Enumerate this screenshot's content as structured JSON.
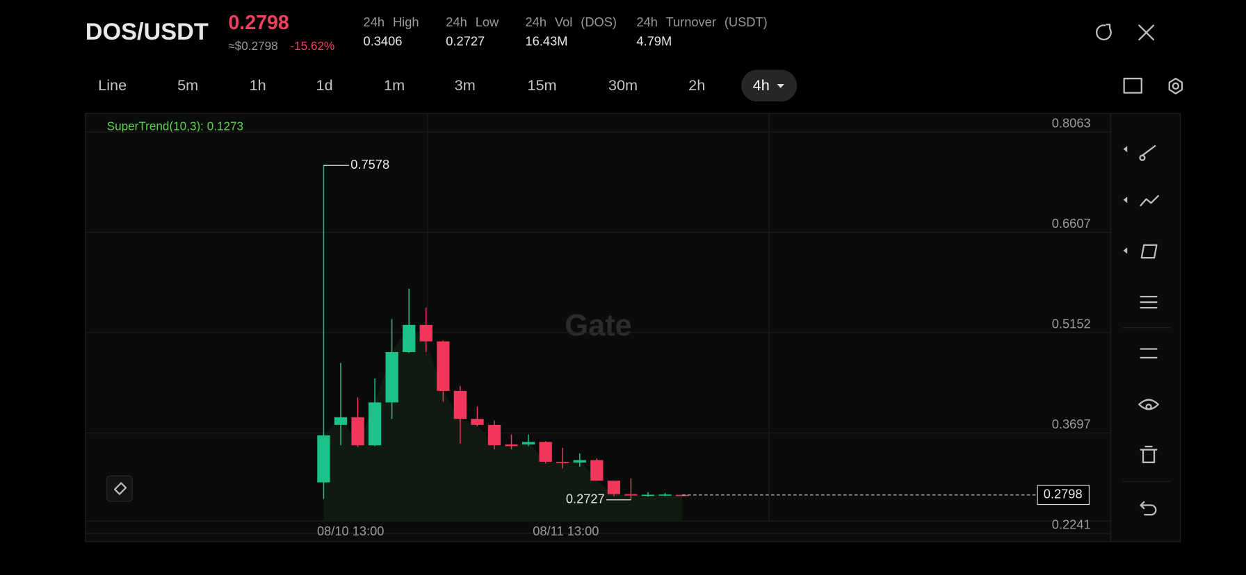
{
  "header": {
    "pair": "DOS/USDT",
    "price": "0.2798",
    "usd_price": "≈$0.2798",
    "change": "-15.62%",
    "stats": [
      {
        "label": "24h High",
        "value": "0.3406"
      },
      {
        "label": "24h Low",
        "value": "0.2727"
      },
      {
        "label": "24h Vol (DOS)",
        "value": "16.43M"
      },
      {
        "label": "24h Turnover (USDT)",
        "value": "4.79M"
      }
    ]
  },
  "timeframes": [
    "Line",
    "5m",
    "1h",
    "1d",
    "1m",
    "3m",
    "15m",
    "30m",
    "2h",
    "4h"
  ],
  "chart_data": {
    "type": "candlestick",
    "indicator": "SuperTrend(10,3): 0.1273",
    "watermark": "Gate",
    "open": [
      0.2981,
      0.3815,
      0.3926,
      0.3519,
      0.4141,
      0.4871,
      0.5265,
      0.5026,
      0.4308,
      0.3902,
      0.3815,
      0.3531,
      0.3531,
      0.3567,
      0.328,
      0.3268,
      0.3304,
      0.3005,
      0.281,
      0.279,
      0.2792,
      0.28
    ],
    "high": [
      0.7578,
      0.4715,
      0.4213,
      0.4488,
      0.5349,
      0.5792,
      0.5516,
      0.5038,
      0.438,
      0.4081,
      0.3878,
      0.3675,
      0.3675,
      0.3579,
      0.3483,
      0.34,
      0.3328,
      0.3005,
      0.304,
      0.284,
      0.283,
      0.2802
    ],
    "low": [
      0.2742,
      0.3519,
      0.3495,
      0.3507,
      0.3902,
      0.4858,
      0.4871,
      0.4153,
      0.3543,
      0.3794,
      0.3459,
      0.3459,
      0.3507,
      0.3256,
      0.3184,
      0.3208,
      0.3005,
      0.278,
      0.2727,
      0.277,
      0.278,
      0.2798
    ],
    "close": [
      0.3663,
      0.3926,
      0.3519,
      0.4141,
      0.4871,
      0.5265,
      0.5026,
      0.4308,
      0.3902,
      0.3815,
      0.3519,
      0.3507,
      0.3567,
      0.328,
      0.3268,
      0.3304,
      0.3005,
      0.281,
      0.279,
      0.2802,
      0.2805,
      0.2798
    ],
    "up_color": "#1bc28b",
    "down_color": "#f2365c",
    "ylim": [
      0.2121,
      0.8332
    ],
    "yticks": [
      0.2241,
      0.3697,
      0.5152,
      0.6607,
      0.8063
    ],
    "grid": true,
    "xticks": [
      {
        "value": 1.58,
        "label": "08/10 13:00"
      },
      {
        "value": 14.19,
        "label": "08/11 13:00"
      }
    ]
  }
}
